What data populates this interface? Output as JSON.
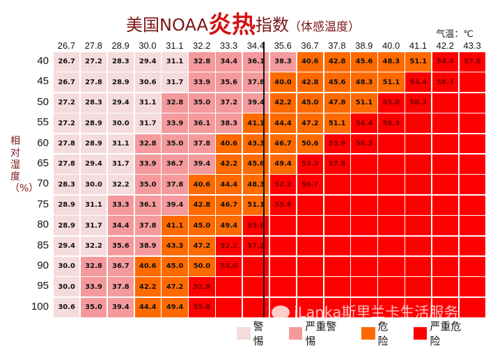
{
  "title": {
    "pre": "美国NOAA",
    "hot": "炎热",
    "post": "指数",
    "sub": "（体感温度）"
  },
  "unit_label": "气温：℃",
  "y_axis_label": "相对湿度（%）",
  "watermark": "iLanka斯里兰卡生活服务",
  "colors": {
    "caution": "#f5dcdc",
    "extreme_caution": "#f59a9c",
    "danger": "#ff6a00",
    "extreme_danger": "#ff0000"
  },
  "legend": [
    {
      "label": "警惕",
      "key": "caution"
    },
    {
      "label": "严重警惕",
      "key": "extreme_caution"
    },
    {
      "label": "危险",
      "key": "danger"
    },
    {
      "label": "严重危险",
      "key": "extreme_danger"
    }
  ],
  "chart_data": {
    "type": "table",
    "title": "美国NOAA炎热指数（体感温度）",
    "xlabel": "气温：℃",
    "ylabel": "相对湿度（%）",
    "temperatures": [
      "26.7",
      "27.8",
      "28.9",
      "30.0",
      "31.1",
      "32.2",
      "33.3",
      "34.4",
      "35.6",
      "36.7",
      "37.8",
      "38.9",
      "40.0",
      "41.1",
      "42.2",
      "43.3"
    ],
    "humidities": [
      "40",
      "45",
      "50",
      "55",
      "60",
      "65",
      "70",
      "75",
      "80",
      "85",
      "90",
      "95",
      "100"
    ],
    "values": [
      [
        "26.7",
        "27.2",
        "28.3",
        "29.4",
        "31.1",
        "32.8",
        "34.4",
        "36.1",
        "38.3",
        "40.6",
        "42.8",
        "45.6",
        "48.3",
        "51.1",
        "54.4",
        "57.8"
      ],
      [
        "26.7",
        "27.8",
        "28.9",
        "30.6",
        "31.7",
        "33.9",
        "35.6",
        "37.8",
        "40.0",
        "42.8",
        "45.6",
        "48.3",
        "51.1",
        "54.4",
        "58.3"
      ],
      [
        "27.2",
        "28.3",
        "29.4",
        "31.1",
        "32.8",
        "35.0",
        "37.2",
        "39.4",
        "42.2",
        "45.0",
        "47.8",
        "51.1",
        "55.0",
        "58.3"
      ],
      [
        "27.2",
        "28.9",
        "30.0",
        "31.7",
        "33.9",
        "36.1",
        "38.3",
        "41.1",
        "44.4",
        "47.2",
        "51.1",
        "54.4",
        "58.3"
      ],
      [
        "27.8",
        "28.9",
        "31.1",
        "32.8",
        "35.0",
        "37.8",
        "40.6",
        "43.3",
        "46.7",
        "50.6",
        "53.9",
        "58.3"
      ],
      [
        "27.8",
        "29.4",
        "31.7",
        "33.9",
        "36.7",
        "39.4",
        "42.2",
        "45.6",
        "49.4",
        "53.3",
        "57.8"
      ],
      [
        "28.3",
        "30.0",
        "32.2",
        "35.0",
        "37.8",
        "40.6",
        "44.4",
        "48.3",
        "52.2",
        "56.7"
      ],
      [
        "28.9",
        "31.1",
        "33.3",
        "36.1",
        "39.4",
        "42.8",
        "46.7",
        "51.1",
        "55.6"
      ],
      [
        "28.9",
        "31.7",
        "34.4",
        "37.8",
        "41.1",
        "45.0",
        "49.4",
        "53.9"
      ],
      [
        "29.4",
        "32.2",
        "35.6",
        "38.9",
        "43.3",
        "47.2",
        "52.2",
        "57.2"
      ],
      [
        "30.0",
        "32.8",
        "36.7",
        "40.6",
        "45.0",
        "50.0",
        "55.0"
      ],
      [
        "30.0",
        "33.9",
        "37.8",
        "42.2",
        "47.2",
        "52.8"
      ],
      [
        "30.6",
        "35.0",
        "39.4",
        "44.4",
        "49.4",
        "55.6"
      ]
    ]
  }
}
